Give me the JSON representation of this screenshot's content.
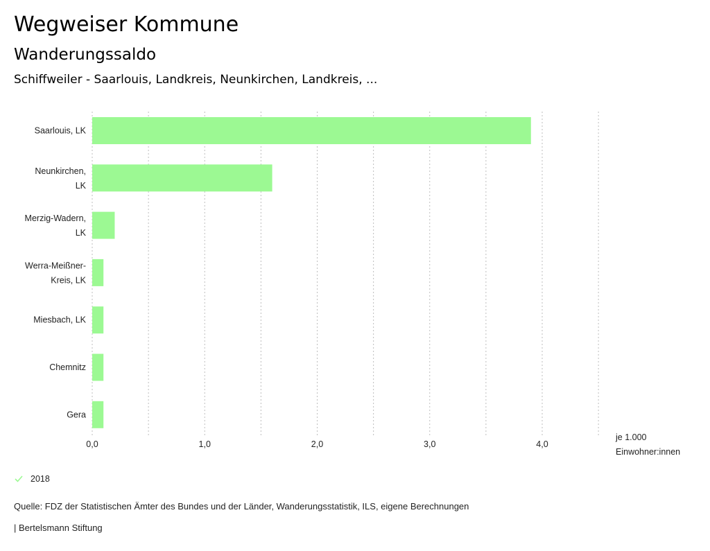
{
  "header": {
    "title": "Wegweiser Kommune",
    "subtitle": "Wanderungssaldo",
    "region": "Schiffweiler - Saarlouis, Landkreis, Neunkirchen, Landkreis, ..."
  },
  "chart_data": {
    "type": "bar",
    "orientation": "horizontal",
    "categories": [
      [
        "Saarlouis, LK"
      ],
      [
        "Neunkirchen,",
        "LK"
      ],
      [
        "Merzig-Wadern,",
        "LK"
      ],
      [
        "Werra-Meißner-",
        "Kreis, LK"
      ],
      [
        "Miesbach, LK"
      ],
      [
        "Chemnitz"
      ],
      [
        "Gera"
      ]
    ],
    "series": [
      {
        "name": "2018",
        "values": [
          3.9,
          1.6,
          0.2,
          0.1,
          0.1,
          0.1,
          0.1
        ],
        "color": "#9cf993"
      }
    ],
    "xlim": [
      0,
      4.5
    ],
    "xticks": [
      0,
      1,
      2,
      3,
      4
    ],
    "xtick_labels": [
      "0,0",
      "1,0",
      "2,0",
      "3,0",
      "4,0"
    ],
    "gridlines": [
      0,
      0.5,
      1,
      1.5,
      2,
      2.5,
      3,
      3.5,
      4,
      4.5
    ],
    "grid": true,
    "xlabel": [
      "je 1.000",
      "Einwohner:innen"
    ],
    "legend_position": "bottom-left"
  },
  "legend": {
    "label": "2018",
    "color": "#9cf993"
  },
  "footer": {
    "source": "Quelle: FDZ der Statistischen Ämter des Bundes und der Länder, Wanderungsstatistik, ILS, eigene Berechnungen",
    "credit": "| Bertelsmann Stiftung"
  }
}
